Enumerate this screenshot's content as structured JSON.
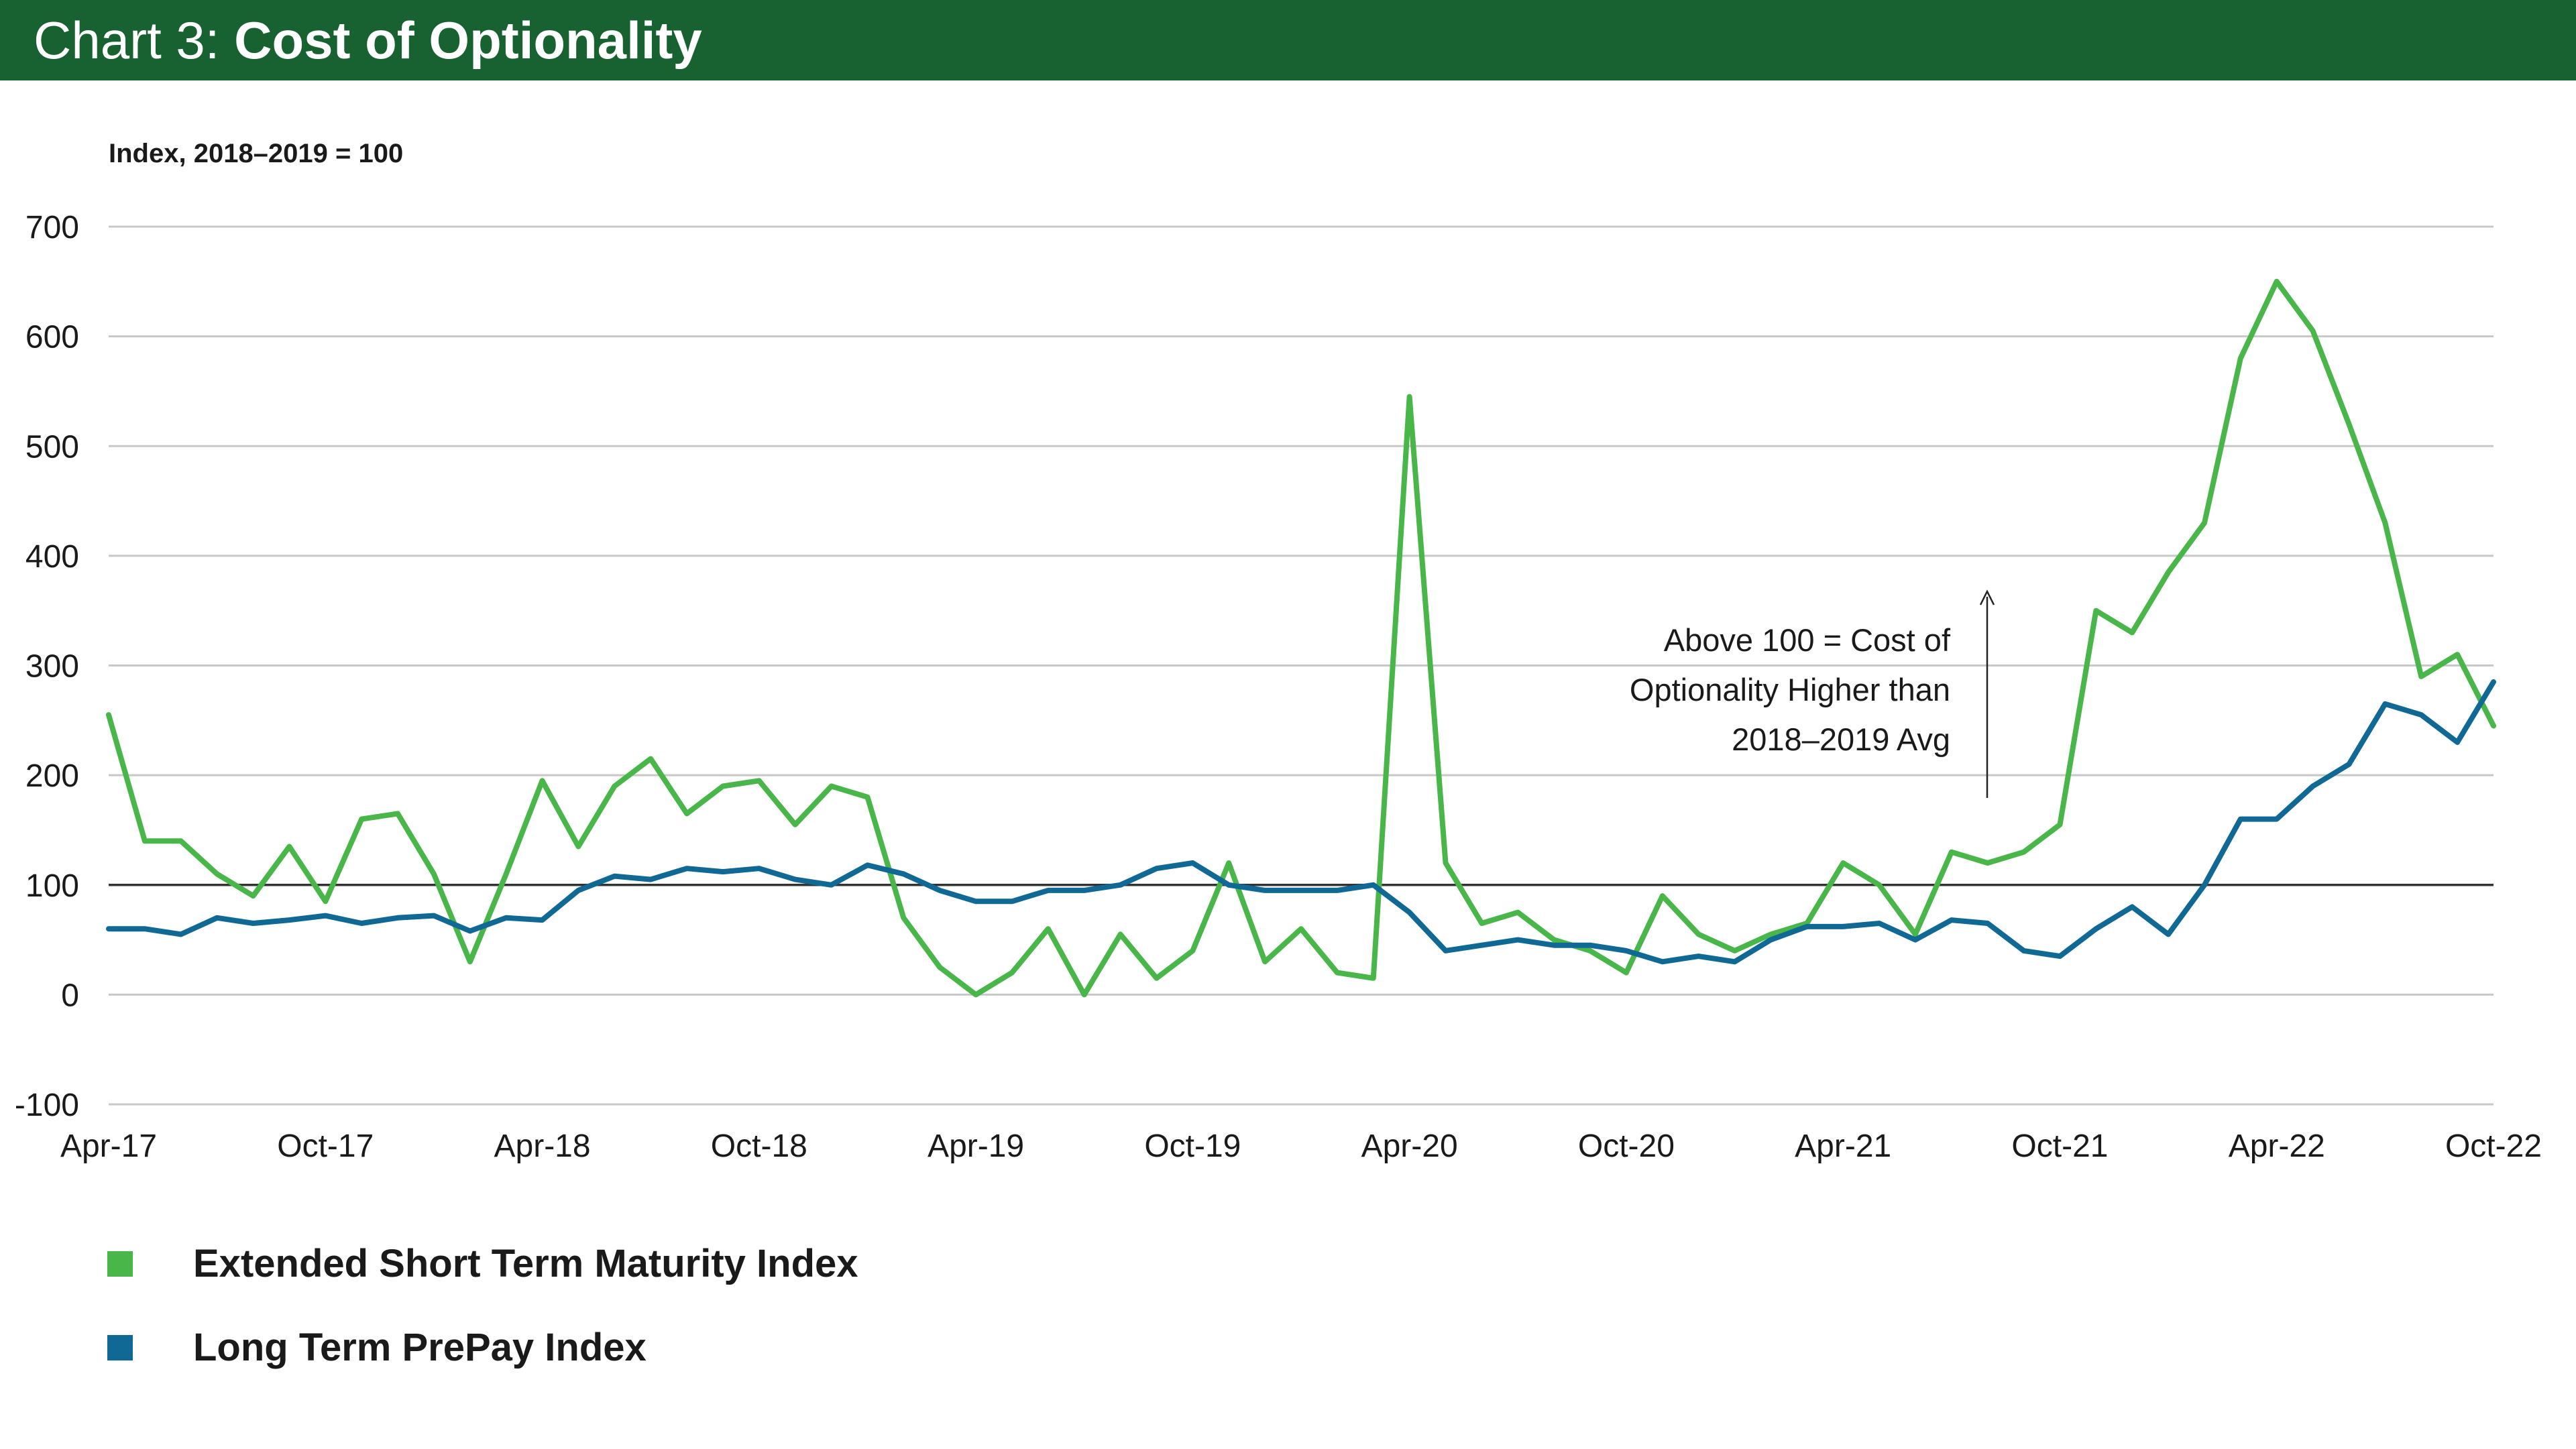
{
  "header": {
    "prefix": "Chart 3: ",
    "title": "Cost of Optionality",
    "background": "#186131"
  },
  "chart_data": {
    "type": "line",
    "ylabel": "Index, 2018–2019 = 100",
    "ylim": [
      -100,
      700
    ],
    "y_ticks": [
      "700",
      "600",
      "500",
      "400",
      "300",
      "200",
      "100",
      "0",
      "-100"
    ],
    "x_ticks": [
      "Apr-17",
      "Oct-17",
      "Apr-18",
      "Oct-18",
      "Apr-19",
      "Oct-19",
      "Apr-20",
      "Oct-20",
      "Apr-21",
      "Oct-21",
      "Apr-22",
      "Oct-22"
    ],
    "x_range": [
      "Apr-17",
      "Oct-22"
    ],
    "grid": "horizontal",
    "reference_line": 100,
    "annotation": [
      "Above 100 = Cost of",
      "Optionality Higher than",
      "2018–2019 Avg"
    ],
    "legend_position": "bottom-left",
    "series": [
      {
        "name": "Extended Short Term Maturity Index",
        "color": "#49b649",
        "points": [
          [
            "Apr-17",
            255
          ],
          [
            "May-17",
            140
          ],
          [
            "Jun-17",
            140
          ],
          [
            "Jul-17",
            110
          ],
          [
            "Aug-17",
            90
          ],
          [
            "Sep-17",
            135
          ],
          [
            "Oct-17",
            85
          ],
          [
            "Nov-17",
            160
          ],
          [
            "Dec-17",
            165
          ],
          [
            "Jan-18",
            110
          ],
          [
            "Feb-18",
            30
          ],
          [
            "Mar-18",
            110
          ],
          [
            "Apr-18",
            195
          ],
          [
            "May-18",
            135
          ],
          [
            "Jun-18",
            190
          ],
          [
            "Jul-18",
            215
          ],
          [
            "Aug-18",
            165
          ],
          [
            "Sep-18",
            190
          ],
          [
            "Oct-18",
            195
          ],
          [
            "Nov-18",
            155
          ],
          [
            "Dec-18",
            190
          ],
          [
            "Jan-19",
            180
          ],
          [
            "Feb-19",
            70
          ],
          [
            "Mar-19",
            25
          ],
          [
            "Apr-19",
            0
          ],
          [
            "May-19",
            20
          ],
          [
            "Jun-19",
            60
          ],
          [
            "Jul-19",
            0
          ],
          [
            "Aug-19",
            55
          ],
          [
            "Sep-19",
            15
          ],
          [
            "Oct-19",
            40
          ],
          [
            "Nov-19",
            120
          ],
          [
            "Dec-19",
            30
          ],
          [
            "Jan-20",
            60
          ],
          [
            "Feb-20",
            20
          ],
          [
            "Mar-20",
            15
          ],
          [
            "Apr-20",
            545
          ],
          [
            "May-20",
            120
          ],
          [
            "Jun-20",
            65
          ],
          [
            "Jul-20",
            75
          ],
          [
            "Aug-20",
            50
          ],
          [
            "Sep-20",
            40
          ],
          [
            "Oct-20",
            20
          ],
          [
            "Nov-20",
            90
          ],
          [
            "Dec-20",
            55
          ],
          [
            "Jan-21",
            40
          ],
          [
            "Feb-21",
            55
          ],
          [
            "Mar-21",
            65
          ],
          [
            "Apr-21",
            120
          ],
          [
            "May-21",
            100
          ],
          [
            "Jun-21",
            55
          ],
          [
            "Jul-21",
            130
          ],
          [
            "Aug-21",
            120
          ],
          [
            "Sep-21",
            130
          ],
          [
            "Oct-21",
            155
          ],
          [
            "Nov-21",
            350
          ],
          [
            "Dec-21",
            330
          ],
          [
            "Jan-22",
            385
          ],
          [
            "Feb-22",
            430
          ],
          [
            "Mar-22",
            580
          ],
          [
            "Apr-22",
            650
          ],
          [
            "May-22",
            605
          ],
          [
            "Jun-22",
            520
          ],
          [
            "Jul-22",
            430
          ],
          [
            "Aug-22",
            290
          ],
          [
            "Sep-22",
            310
          ],
          [
            "Oct-22",
            245
          ]
        ]
      },
      {
        "name": "Long Term PrePay Index",
        "color": "#0f6994",
        "points": [
          [
            "Apr-17",
            60
          ],
          [
            "May-17",
            60
          ],
          [
            "Jun-17",
            55
          ],
          [
            "Jul-17",
            70
          ],
          [
            "Aug-17",
            65
          ],
          [
            "Sep-17",
            68
          ],
          [
            "Oct-17",
            72
          ],
          [
            "Nov-17",
            65
          ],
          [
            "Dec-17",
            70
          ],
          [
            "Jan-18",
            72
          ],
          [
            "Feb-18",
            58
          ],
          [
            "Mar-18",
            70
          ],
          [
            "Apr-18",
            68
          ],
          [
            "May-18",
            95
          ],
          [
            "Jun-18",
            108
          ],
          [
            "Jul-18",
            105
          ],
          [
            "Aug-18",
            115
          ],
          [
            "Sep-18",
            112
          ],
          [
            "Oct-18",
            115
          ],
          [
            "Nov-18",
            105
          ],
          [
            "Dec-18",
            100
          ],
          [
            "Jan-19",
            118
          ],
          [
            "Feb-19",
            110
          ],
          [
            "Mar-19",
            95
          ],
          [
            "Apr-19",
            85
          ],
          [
            "May-19",
            85
          ],
          [
            "Jun-19",
            95
          ],
          [
            "Jul-19",
            95
          ],
          [
            "Aug-19",
            100
          ],
          [
            "Sep-19",
            115
          ],
          [
            "Oct-19",
            120
          ],
          [
            "Nov-19",
            100
          ],
          [
            "Dec-19",
            95
          ],
          [
            "Jan-20",
            95
          ],
          [
            "Feb-20",
            95
          ],
          [
            "Mar-20",
            100
          ],
          [
            "Apr-20",
            75
          ],
          [
            "May-20",
            40
          ],
          [
            "Jun-20",
            45
          ],
          [
            "Jul-20",
            50
          ],
          [
            "Aug-20",
            45
          ],
          [
            "Sep-20",
            45
          ],
          [
            "Oct-20",
            40
          ],
          [
            "Nov-20",
            30
          ],
          [
            "Dec-20",
            35
          ],
          [
            "Jan-21",
            30
          ],
          [
            "Feb-21",
            50
          ],
          [
            "Mar-21",
            62
          ],
          [
            "Apr-21",
            62
          ],
          [
            "May-21",
            65
          ],
          [
            "Jun-21",
            50
          ],
          [
            "Jul-21",
            68
          ],
          [
            "Aug-21",
            65
          ],
          [
            "Sep-21",
            40
          ],
          [
            "Oct-21",
            35
          ],
          [
            "Nov-21",
            60
          ],
          [
            "Dec-21",
            80
          ],
          [
            "Jan-22",
            55
          ],
          [
            "Feb-22",
            100
          ],
          [
            "Mar-22",
            160
          ],
          [
            "Apr-22",
            160
          ],
          [
            "May-22",
            190
          ],
          [
            "Jun-22",
            210
          ],
          [
            "Jul-22",
            265
          ],
          [
            "Aug-22",
            255
          ],
          [
            "Sep-22",
            230
          ],
          [
            "Oct-22",
            285
          ]
        ]
      }
    ]
  }
}
